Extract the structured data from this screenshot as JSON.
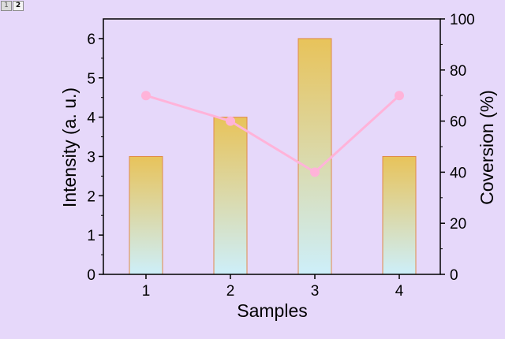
{
  "window": {
    "tabs": [
      {
        "label": "1"
      },
      {
        "label": "2"
      }
    ]
  },
  "colors": {
    "background": "#e6d8fa",
    "bar_top": "#e8c35a",
    "bar_bottom": "#cdeffa",
    "bar_edge": "#e08a4a",
    "line": "#ffb3d9",
    "marker": "#ffb3d9"
  },
  "chart_data": {
    "type": "bar",
    "categories": [
      "1",
      "2",
      "3",
      "4"
    ],
    "xlabel": "Samples",
    "ylabel": "Intensity (a. u.)",
    "ylabel_right": "Coversion (%)",
    "ylim": [
      0,
      6.5
    ],
    "ylim_right": [
      0,
      100
    ],
    "y_ticks": [
      0,
      1,
      2,
      3,
      4,
      5,
      6
    ],
    "y_ticks_right": [
      0,
      20,
      40,
      60,
      80,
      100
    ],
    "grid": false,
    "series": [
      {
        "kind": "bar",
        "axis": "left",
        "values": [
          3,
          4,
          6,
          3
        ]
      },
      {
        "kind": "line",
        "axis": "right",
        "values": [
          70,
          60,
          40,
          70
        ]
      }
    ]
  }
}
